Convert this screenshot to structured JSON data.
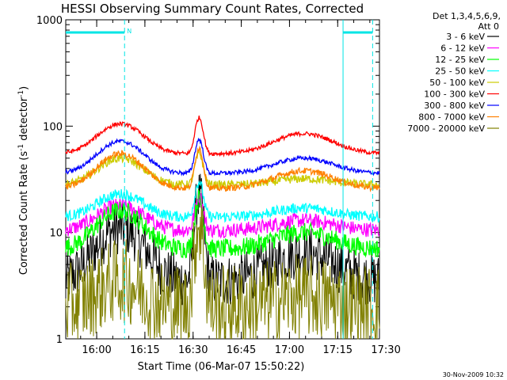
{
  "chart_data": {
    "type": "line",
    "title": "HESSI Observing Summary Count Rates, Corrected",
    "xlabel": "Start Time (06-Mar-07 15:50:22)",
    "ylabel_parts": [
      "Corrected Count Rate (s",
      "-1",
      " detector",
      "-1",
      ")"
    ],
    "x_range": [
      "15:50:22",
      "17:28:00"
    ],
    "ylim": [
      1,
      1000
    ],
    "y_scale": "log",
    "x_ticks": [
      {
        "label": "16:00",
        "t": 9.63
      },
      {
        "label": "16:15",
        "t": 24.63
      },
      {
        "label": "16:30",
        "t": 39.63
      },
      {
        "label": "16:45",
        "t": 54.63
      },
      {
        "label": "17:00",
        "t": 69.63
      },
      {
        "label": "17:15",
        "t": 84.63
      },
      {
        "label": "17:30",
        "t": 99.63
      }
    ],
    "y_ticks": [
      {
        "label": "1",
        "value": 1
      },
      {
        "label": "10",
        "value": 10
      },
      {
        "label": "100",
        "value": 100
      },
      {
        "label": "1000",
        "value": 1000
      }
    ],
    "legend_header": [
      "Det 1,3,4,5,6,9,",
      "Att 0"
    ],
    "series": [
      {
        "name": "3 - 6 keV",
        "color": "#000000",
        "base": 3.5,
        "bump": 11,
        "bump2": 6.5,
        "peak": 22,
        "noise": 0.25
      },
      {
        "name": "6 - 12 keV",
        "color": "#ff00ff",
        "base": 10.5,
        "bump": 18,
        "bump2": 13,
        "peak": 22,
        "noise": 0.07
      },
      {
        "name": "12 - 25 keV",
        "color": "#00ff00",
        "base": 7,
        "bump": 16,
        "bump2": 10,
        "peak": 21,
        "noise": 0.09
      },
      {
        "name": "25 - 50 keV",
        "color": "#00ffff",
        "base": 14,
        "bump": 23,
        "bump2": 17,
        "peak": 30,
        "noise": 0.05
      },
      {
        "name": "50 - 100 keV",
        "color": "#cccc00",
        "base": 28,
        "bump": 50,
        "bump2": 32,
        "peak": 55,
        "noise": 0.04
      },
      {
        "name": "100 - 300 keV",
        "color": "#ff0000",
        "base": 55,
        "bump": 105,
        "bump2": 85,
        "peak": 120,
        "noise": 0.02
      },
      {
        "name": "300 - 800 keV",
        "color": "#0000ff",
        "base": 36,
        "bump": 72,
        "bump2": 50,
        "peak": 75,
        "noise": 0.02
      },
      {
        "name": "800 - 7000 keV",
        "color": "#ff8000",
        "base": 26,
        "bump": 55,
        "bump2": 38,
        "peak": 62,
        "noise": 0.03
      },
      {
        "name": "7000 - 20000 keV",
        "color": "#808000",
        "base": 2.0,
        "bump": 3.5,
        "bump2": 2.5,
        "peak": 12,
        "noise": 0.4
      }
    ],
    "markers": {
      "dashed_minutes": [
        18.3,
        95.5
      ],
      "solid_minutes": [
        86.3
      ],
      "top_bars": [
        [
          0,
          18.3
        ],
        [
          86.3,
          95.5
        ]
      ],
      "label": "N"
    },
    "footer_date": "30-Nov-2009 10:32"
  }
}
